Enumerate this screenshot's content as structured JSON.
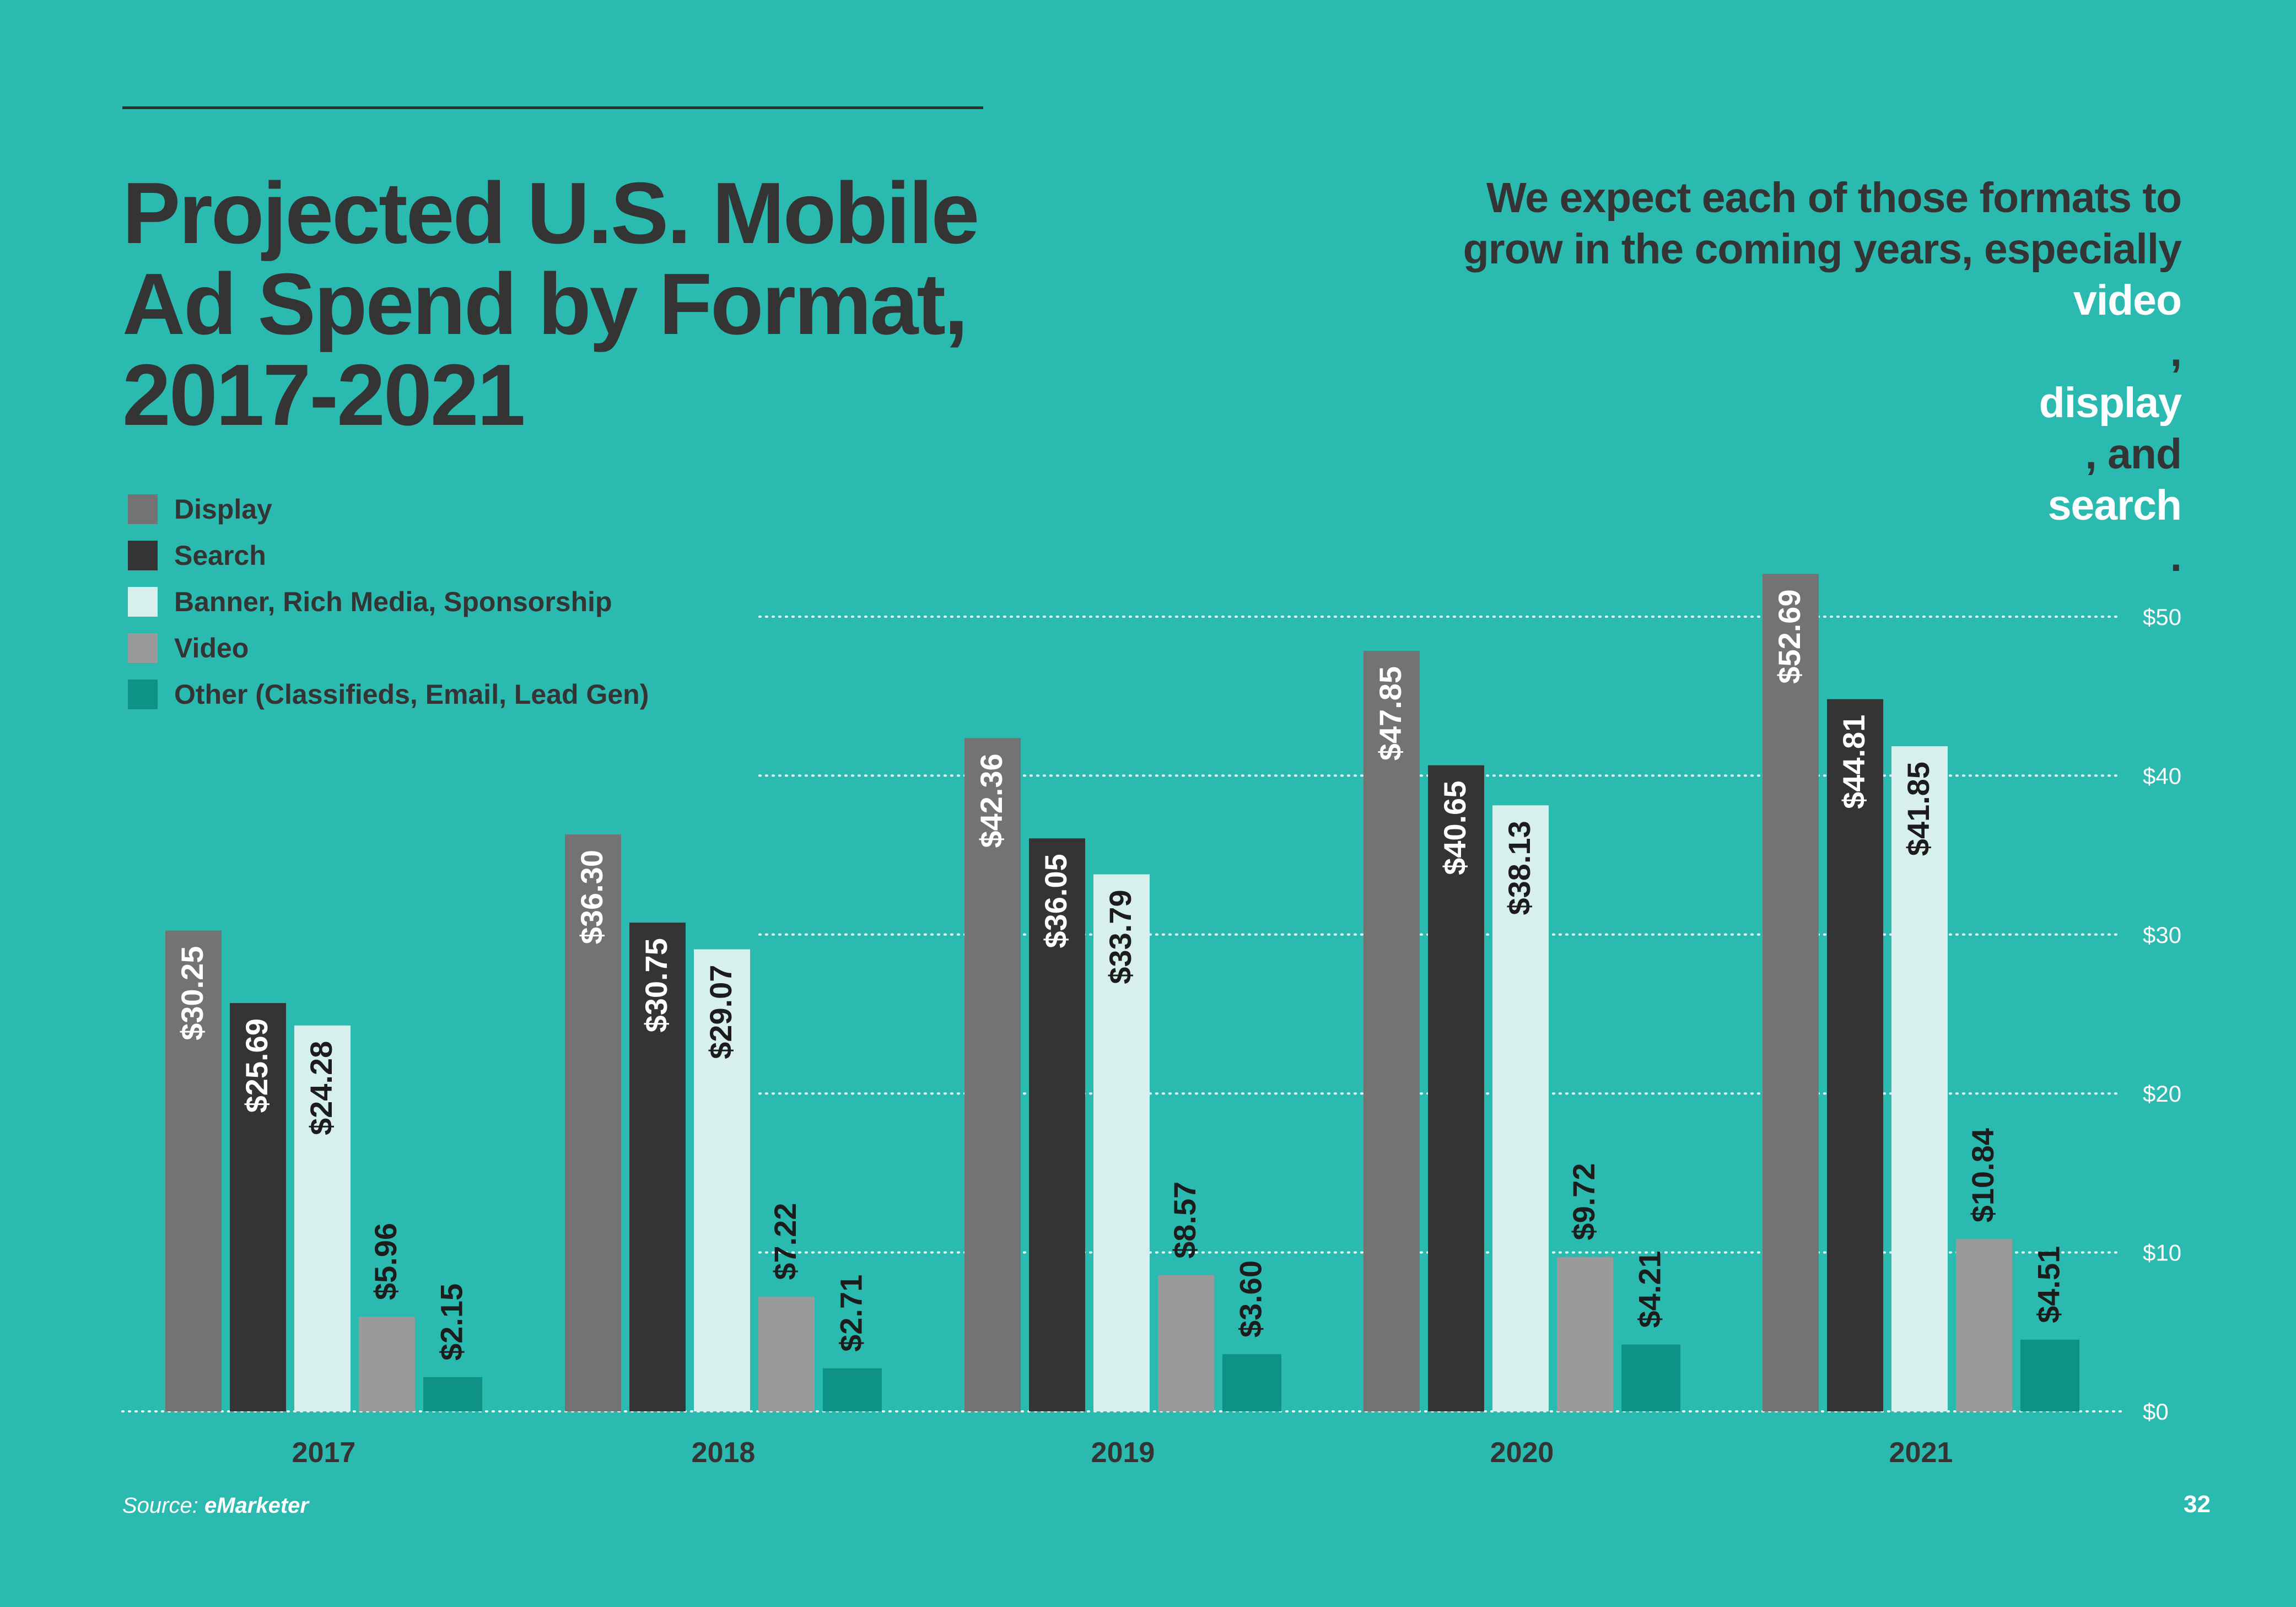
{
  "title_lines": [
    "Projected U.S. Mobile",
    "Ad Spend by Format,",
    "2017-2021"
  ],
  "tagline": {
    "line1": "We expect each of those formats to",
    "line2": "grow in the coming years, especially",
    "hl1": "video",
    "sep1": ", ",
    "hl2": "display",
    "sep2": ", and ",
    "hl3": "search",
    "end": "."
  },
  "source": {
    "prefix": "Source: ",
    "name": "eMarketer"
  },
  "page_number": "32",
  "chart_data": {
    "type": "bar",
    "title": "Projected U.S. Mobile Ad Spend by Format, 2017-2021",
    "categories": [
      "2017",
      "2018",
      "2019",
      "2020",
      "2021"
    ],
    "series": [
      {
        "name": "Display",
        "color": "#737373",
        "label_color": "#ffffff",
        "values": [
          30.25,
          36.3,
          42.36,
          47.85,
          52.69
        ],
        "labels": [
          "$30.25",
          "$36.30",
          "$42.36",
          "$47.85",
          "$52.69"
        ]
      },
      {
        "name": "Search",
        "color": "#343434",
        "label_color": "#ffffff",
        "values": [
          25.69,
          30.75,
          36.05,
          40.65,
          44.81
        ],
        "labels": [
          "$25.69",
          "$30.75",
          "$36.05",
          "$40.65",
          "$44.81"
        ]
      },
      {
        "name": "Banner, Rich Media, Sponsorship",
        "color": "#d7f0ee",
        "label_color": "#1c1c1c",
        "values": [
          24.28,
          29.07,
          33.79,
          38.13,
          41.85
        ],
        "labels": [
          "$24.28",
          "$29.07",
          "$33.79",
          "$38.13",
          "$41.85"
        ]
      },
      {
        "name": "Video",
        "color": "#9a9a9a",
        "label_color": "#1c1c1c",
        "values": [
          5.96,
          7.22,
          8.57,
          9.72,
          10.84
        ],
        "labels": [
          "$5.96",
          "$7.22",
          "$8.57",
          "$9.72",
          "$10.84"
        ]
      },
      {
        "name": "Other (Classifieds, Email, Lead Gen)",
        "color": "#0f9286",
        "label_color": "#1c1c1c",
        "values": [
          2.15,
          2.71,
          3.6,
          4.21,
          4.51
        ],
        "labels": [
          "$2.15",
          "$2.71",
          "$3.60",
          "$4.21",
          "$4.51"
        ]
      }
    ],
    "ylim": [
      0,
      50
    ],
    "yticks": [
      0,
      10,
      20,
      30,
      40,
      50
    ],
    "ytick_labels": [
      "$0",
      "$10",
      "$20",
      "$30",
      "$40",
      "$50"
    ],
    "grid": true,
    "grid_style": "dotted",
    "y_axis_side": "right",
    "legend_position": "top-left"
  }
}
